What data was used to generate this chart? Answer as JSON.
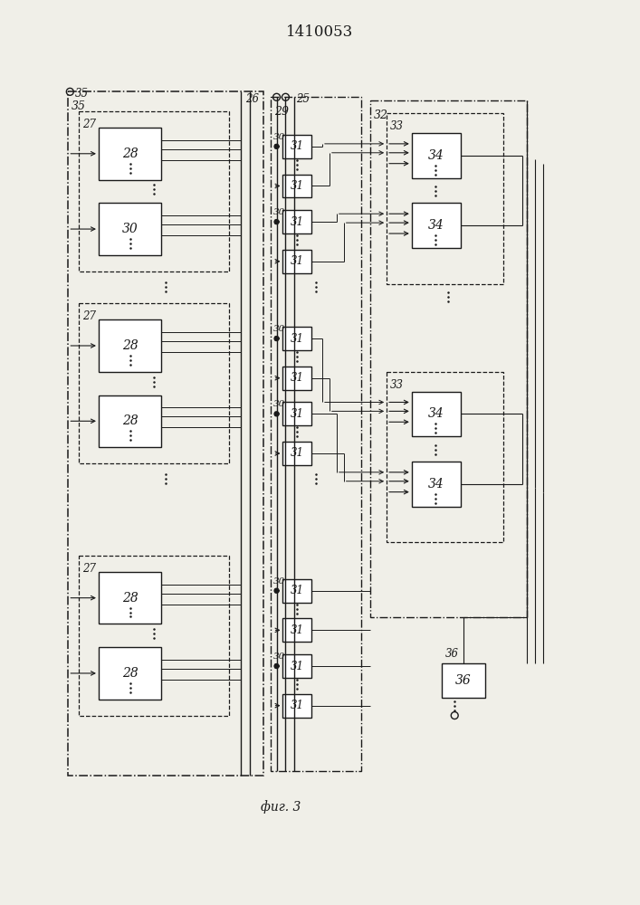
{
  "title": "1410053",
  "fig_label": "фиг. 3",
  "bg_color": "#f0efe8",
  "line_color": "#1a1a1a",
  "box_color": "#ffffff"
}
